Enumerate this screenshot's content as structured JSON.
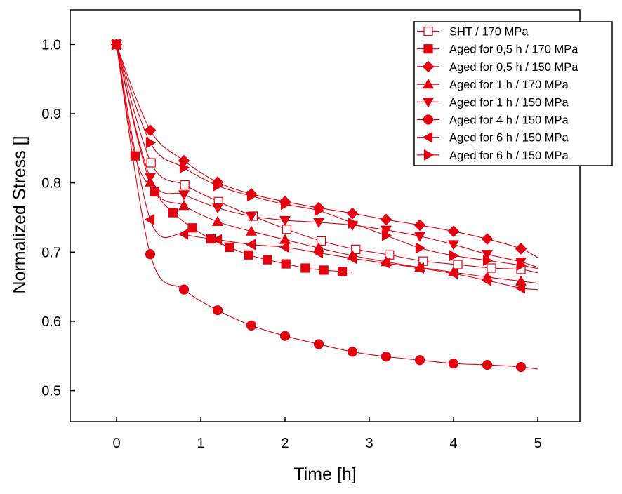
{
  "colors": {
    "series": "#e3000f",
    "fill": "#e3000f",
    "line": "#e3000f",
    "axis": "#000000"
  },
  "chart_data": {
    "type": "scatter",
    "title": "",
    "xlabel": "Time [h]",
    "ylabel": "Normalized Stress []",
    "xlim": [
      -0.55,
      5.5
    ],
    "ylim": [
      0.455,
      1.05
    ],
    "x_ticks": [
      0,
      1,
      2,
      3,
      4,
      5
    ],
    "x_tick_labels": [
      "0",
      "1",
      "2",
      "3",
      "4",
      "5"
    ],
    "y_ticks": [
      0.5,
      0.6,
      0.7,
      0.8,
      0.9,
      1.0
    ],
    "y_tick_labels": [
      "0.5",
      "0.6",
      "0.7",
      "0.8",
      "0.9",
      "1.0"
    ],
    "grid": false,
    "legend_position": "top-right",
    "series": [
      {
        "name": "SHT / 170 MPa",
        "marker": "square-open",
        "x": [
          0,
          0.41,
          0.81,
          1.21,
          1.62,
          2.02,
          2.43,
          2.84,
          3.24,
          3.64,
          4.05,
          4.45,
          4.8
        ],
        "y": [
          1.0,
          0.829,
          0.797,
          0.773,
          0.752,
          0.733,
          0.716,
          0.704,
          0.696,
          0.687,
          0.682,
          0.677,
          0.675
        ],
        "fit_end": [
          5.0,
          0.67
        ]
      },
      {
        "name": "Aged for 0,5 h / 170 MPa",
        "marker": "square",
        "x": [
          0,
          0.22,
          0.45,
          0.67,
          0.9,
          1.12,
          1.34,
          1.57,
          1.79,
          2.01,
          2.24,
          2.46,
          2.68
        ],
        "y": [
          1.0,
          0.839,
          0.787,
          0.757,
          0.735,
          0.719,
          0.707,
          0.696,
          0.689,
          0.683,
          0.677,
          0.674,
          0.672
        ],
        "fit_end": [
          2.8,
          0.671
        ]
      },
      {
        "name": "Aged for 0,5 h / 150 MPa",
        "marker": "diamond",
        "x": [
          0,
          0.4,
          0.8,
          1.2,
          1.6,
          2.0,
          2.4,
          2.8,
          3.2,
          3.6,
          4.0,
          4.4,
          4.8
        ],
        "y": [
          1.0,
          0.876,
          0.832,
          0.801,
          0.784,
          0.773,
          0.764,
          0.756,
          0.747,
          0.739,
          0.73,
          0.719,
          0.705
        ],
        "fit_end": [
          5.0,
          0.692
        ]
      },
      {
        "name": "Aged for 1 h / 170 MPa",
        "marker": "triangle-up",
        "x": [
          0,
          0.4,
          0.8,
          1.2,
          1.6,
          2.0,
          2.4,
          2.8,
          3.2,
          3.6,
          4.0,
          4.4,
          4.8
        ],
        "y": [
          1.0,
          0.801,
          0.767,
          0.744,
          0.73,
          0.718,
          0.706,
          0.695,
          0.686,
          0.678,
          0.671,
          0.664,
          0.658
        ],
        "fit_end": [
          5.0,
          0.655
        ]
      },
      {
        "name": "Aged for 1 h / 150 MPa",
        "marker": "triangle-down",
        "x": [
          0,
          0.4,
          0.8,
          1.2,
          1.6,
          2.0,
          2.4,
          2.8,
          3.2,
          3.6,
          4.0,
          4.4,
          4.8
        ],
        "y": [
          1.0,
          0.808,
          0.783,
          0.764,
          0.752,
          0.746,
          0.743,
          0.739,
          0.732,
          0.723,
          0.711,
          0.697,
          0.686
        ],
        "fit_end": [
          5.0,
          0.678
        ]
      },
      {
        "name": "Aged for 4 h / 150 MPa",
        "marker": "circle",
        "x": [
          0,
          0.4,
          0.8,
          1.2,
          1.6,
          2.0,
          2.4,
          2.8,
          3.2,
          3.6,
          4.0,
          4.4,
          4.8
        ],
        "y": [
          1.0,
          0.697,
          0.646,
          0.616,
          0.594,
          0.579,
          0.567,
          0.556,
          0.549,
          0.544,
          0.539,
          0.537,
          0.534
        ],
        "fit_end": [
          5.0,
          0.531
        ]
      },
      {
        "name": "Aged for 6 h / 150 MPa",
        "marker": "triangle-left",
        "x": [
          0,
          0.4,
          0.8,
          1.2,
          1.6,
          2.0,
          2.4,
          2.8,
          3.2,
          3.6,
          4.0,
          4.4,
          4.8
        ],
        "y": [
          1.0,
          0.747,
          0.726,
          0.718,
          0.711,
          0.707,
          0.699,
          0.691,
          0.684,
          0.677,
          0.669,
          0.659,
          0.648
        ],
        "fit_end": [
          5.0,
          0.646
        ]
      },
      {
        "name": "Aged for 6 h / 150 MPa",
        "marker": "triangle-right",
        "x": [
          0,
          0.4,
          0.8,
          1.2,
          1.6,
          2.0,
          2.4,
          2.8,
          3.2,
          3.6,
          4.0,
          4.4,
          4.8
        ],
        "y": [
          1.0,
          0.858,
          0.822,
          0.796,
          0.781,
          0.769,
          0.76,
          0.742,
          0.724,
          0.706,
          0.695,
          0.688,
          0.681
        ],
        "fit_end": [
          5.0,
          0.676
        ]
      }
    ]
  }
}
